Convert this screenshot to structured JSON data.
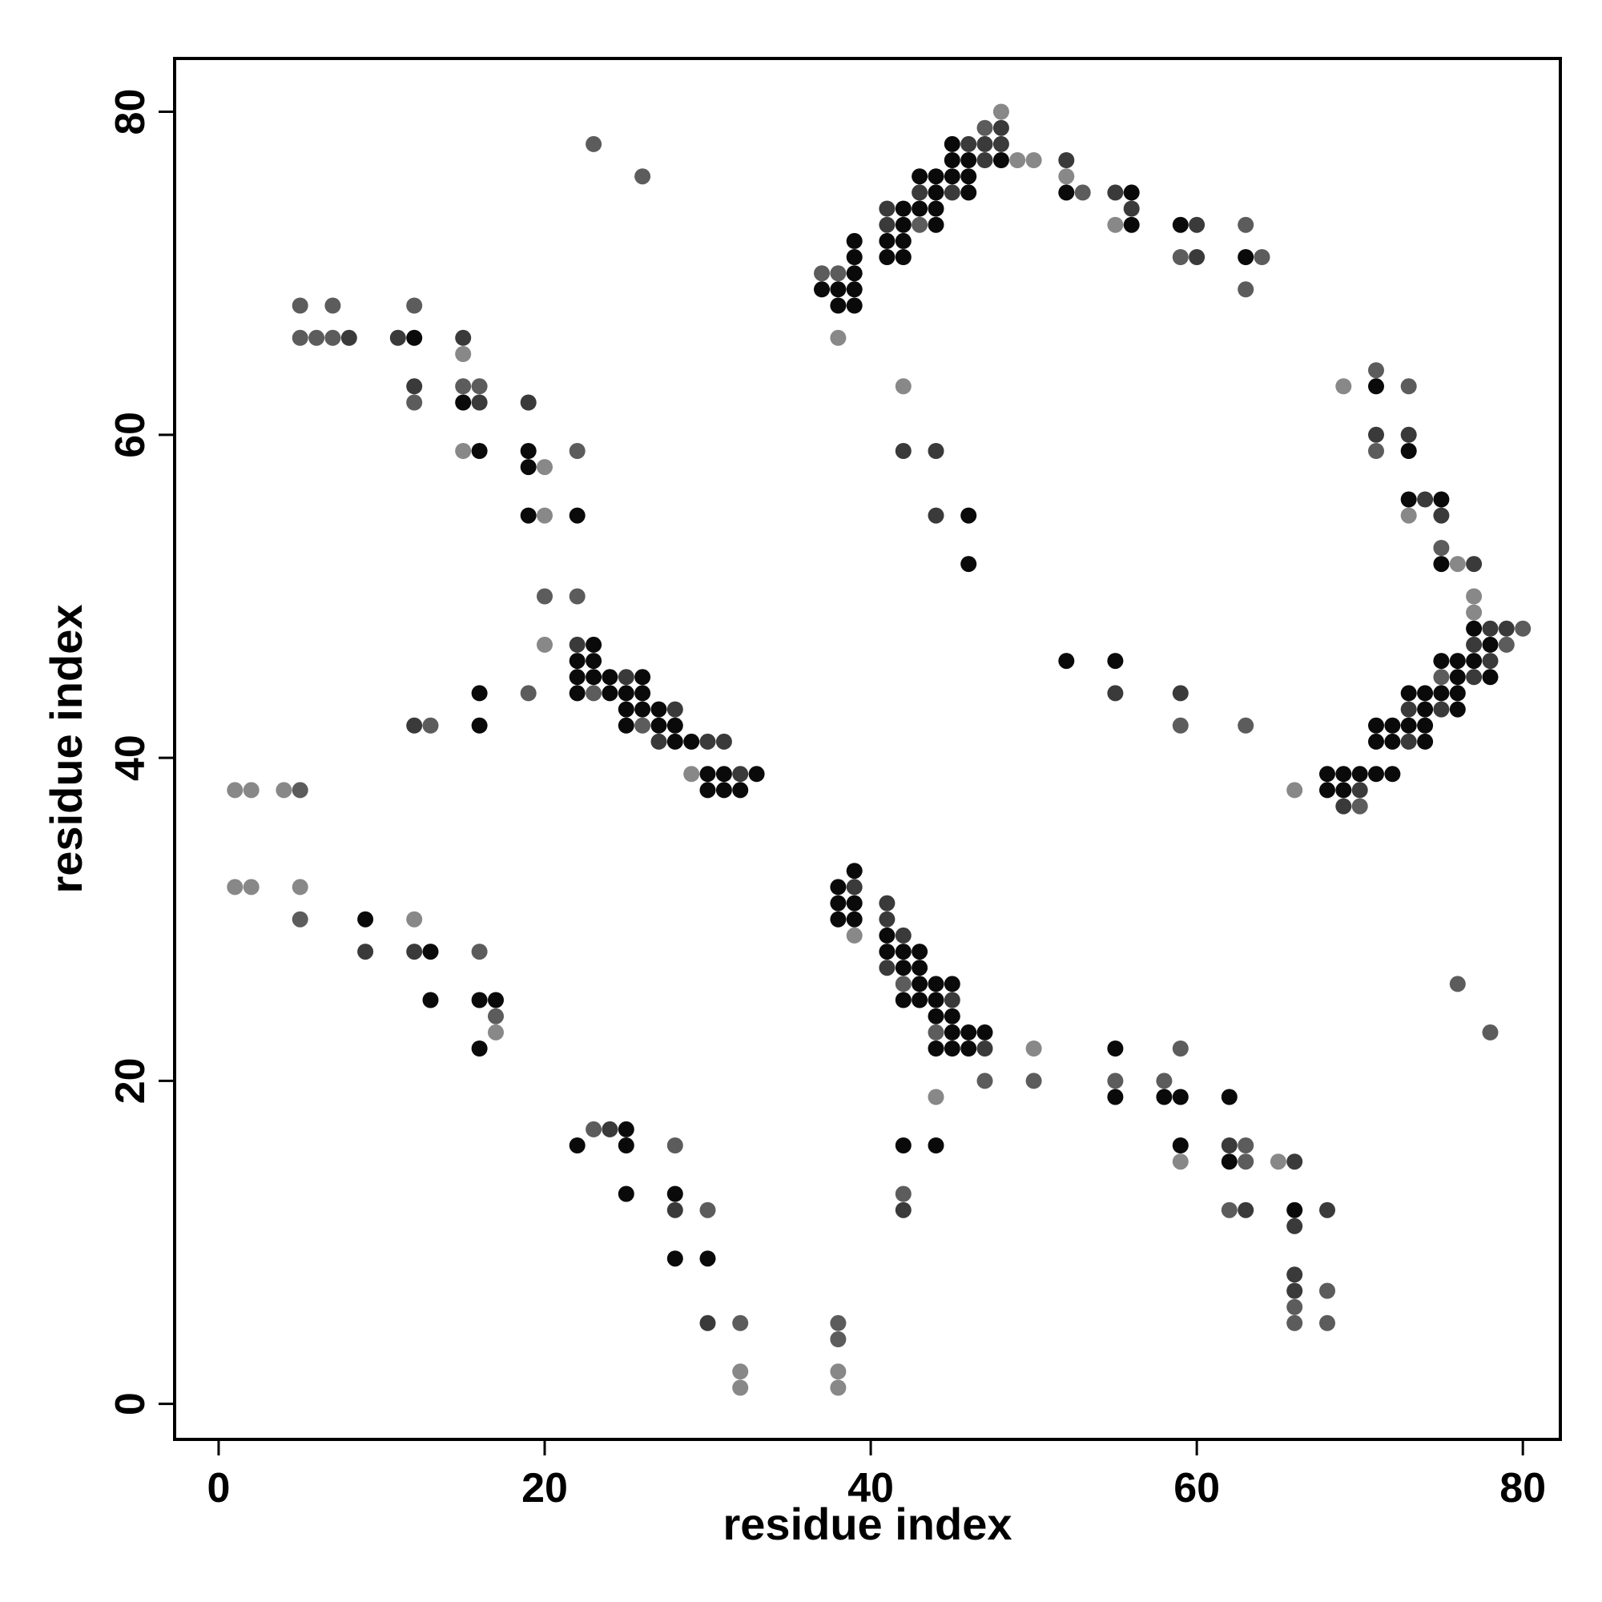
{
  "chart_data": {
    "type": "scatter",
    "title": "",
    "xlabel": "residue index",
    "ylabel": "residue index",
    "xlim": [
      -2.7,
      82.3
    ],
    "ylim": [
      -2.2,
      83.3
    ],
    "xticks": [
      0,
      20,
      40,
      60,
      80
    ],
    "yticks": [
      0,
      20,
      40,
      60,
      80
    ],
    "xtick_labels": [
      "0",
      "20",
      "40",
      "60",
      "80"
    ],
    "ytick_labels": [
      "0",
      "20",
      "40",
      "60",
      "80"
    ],
    "grid": false,
    "legend": "none",
    "shade_scale": "darker = stronger contact",
    "shade_colors": {
      "1": "#0a0a0a",
      "2": "#3a3a3a",
      "3": "#5c5c5c",
      "4": "#888888"
    },
    "points": [
      [
        23,
        78,
        3
      ],
      [
        26,
        76,
        3
      ],
      [
        48,
        80,
        4
      ],
      [
        47,
        79,
        3
      ],
      [
        48,
        79,
        2
      ],
      [
        45,
        78,
        1
      ],
      [
        46,
        78,
        2
      ],
      [
        47,
        78,
        2
      ],
      [
        48,
        78,
        2
      ],
      [
        45,
        77,
        1
      ],
      [
        46,
        77,
        1
      ],
      [
        47,
        77,
        2
      ],
      [
        48,
        77,
        1
      ],
      [
        49,
        77,
        4
      ],
      [
        50,
        77,
        4
      ],
      [
        52,
        77,
        2
      ],
      [
        43,
        76,
        1
      ],
      [
        44,
        76,
        1
      ],
      [
        45,
        76,
        1
      ],
      [
        46,
        76,
        1
      ],
      [
        52,
        76,
        4
      ],
      [
        43,
        75,
        2
      ],
      [
        44,
        75,
        1
      ],
      [
        45,
        75,
        2
      ],
      [
        46,
        75,
        1
      ],
      [
        52,
        75,
        1
      ],
      [
        53,
        75,
        3
      ],
      [
        55,
        75,
        2
      ],
      [
        56,
        75,
        1
      ],
      [
        41,
        74,
        2
      ],
      [
        42,
        74,
        1
      ],
      [
        43,
        74,
        1
      ],
      [
        44,
        74,
        1
      ],
      [
        56,
        74,
        2
      ],
      [
        41,
        73,
        2
      ],
      [
        42,
        73,
        1
      ],
      [
        43,
        73,
        3
      ],
      [
        44,
        73,
        1
      ],
      [
        55,
        73,
        4
      ],
      [
        56,
        73,
        1
      ],
      [
        59,
        73,
        1
      ],
      [
        60,
        73,
        2
      ],
      [
        63,
        73,
        3
      ],
      [
        41,
        72,
        1
      ],
      [
        42,
        72,
        1
      ],
      [
        39,
        72,
        1
      ],
      [
        39,
        71,
        1
      ],
      [
        41,
        71,
        1
      ],
      [
        42,
        71,
        1
      ],
      [
        59,
        71,
        3
      ],
      [
        60,
        71,
        2
      ],
      [
        63,
        71,
        1
      ],
      [
        64,
        71,
        3
      ],
      [
        37,
        70,
        3
      ],
      [
        38,
        70,
        3
      ],
      [
        39,
        70,
        1
      ],
      [
        37,
        69,
        1
      ],
      [
        38,
        69,
        1
      ],
      [
        39,
        69,
        1
      ],
      [
        63,
        69,
        3
      ],
      [
        5,
        68,
        3
      ],
      [
        7,
        68,
        3
      ],
      [
        12,
        68,
        3
      ],
      [
        38,
        68,
        1
      ],
      [
        39,
        68,
        1
      ],
      [
        5,
        66,
        3
      ],
      [
        6,
        66,
        3
      ],
      [
        7,
        66,
        3
      ],
      [
        8,
        66,
        2
      ],
      [
        11,
        66,
        2
      ],
      [
        12,
        66,
        1
      ],
      [
        15,
        66,
        2
      ],
      [
        38,
        66,
        4
      ],
      [
        15,
        65,
        4
      ],
      [
        71,
        64,
        3
      ],
      [
        12,
        63,
        2
      ],
      [
        15,
        63,
        3
      ],
      [
        16,
        63,
        3
      ],
      [
        42,
        63,
        4
      ],
      [
        69,
        63,
        4
      ],
      [
        71,
        63,
        1
      ],
      [
        73,
        63,
        3
      ],
      [
        12,
        62,
        3
      ],
      [
        15,
        62,
        1
      ],
      [
        16,
        62,
        2
      ],
      [
        19,
        62,
        2
      ],
      [
        71,
        60,
        2
      ],
      [
        73,
        60,
        2
      ],
      [
        15,
        59,
        4
      ],
      [
        16,
        59,
        1
      ],
      [
        19,
        59,
        1
      ],
      [
        22,
        59,
        3
      ],
      [
        42,
        59,
        2
      ],
      [
        44,
        59,
        2
      ],
      [
        71,
        59,
        3
      ],
      [
        73,
        59,
        1
      ],
      [
        19,
        58,
        1
      ],
      [
        20,
        58,
        4
      ],
      [
        73,
        56,
        1
      ],
      [
        74,
        56,
        2
      ],
      [
        75,
        56,
        1
      ],
      [
        19,
        55,
        1
      ],
      [
        20,
        55,
        4
      ],
      [
        22,
        55,
        1
      ],
      [
        44,
        55,
        2
      ],
      [
        46,
        55,
        1
      ],
      [
        73,
        55,
        4
      ],
      [
        75,
        55,
        2
      ],
      [
        75,
        53,
        3
      ],
      [
        46,
        52,
        1
      ],
      [
        75,
        52,
        1
      ],
      [
        76,
        52,
        4
      ],
      [
        77,
        52,
        2
      ],
      [
        20,
        50,
        3
      ],
      [
        22,
        50,
        3
      ],
      [
        77,
        50,
        4
      ],
      [
        77,
        49,
        4
      ],
      [
        77,
        48,
        1
      ],
      [
        78,
        48,
        2
      ],
      [
        79,
        48,
        2
      ],
      [
        80,
        48,
        3
      ],
      [
        20,
        47,
        4
      ],
      [
        22,
        47,
        2
      ],
      [
        23,
        47,
        1
      ],
      [
        77,
        47,
        2
      ],
      [
        78,
        47,
        1
      ],
      [
        79,
        47,
        3
      ],
      [
        22,
        46,
        1
      ],
      [
        23,
        46,
        1
      ],
      [
        52,
        46,
        1
      ],
      [
        55,
        46,
        1
      ],
      [
        75,
        46,
        1
      ],
      [
        76,
        46,
        1
      ],
      [
        77,
        46,
        1
      ],
      [
        78,
        46,
        2
      ],
      [
        22,
        45,
        1
      ],
      [
        23,
        45,
        1
      ],
      [
        24,
        45,
        1
      ],
      [
        25,
        45,
        2
      ],
      [
        26,
        45,
        1
      ],
      [
        75,
        45,
        3
      ],
      [
        76,
        45,
        1
      ],
      [
        77,
        45,
        2
      ],
      [
        78,
        45,
        1
      ],
      [
        16,
        44,
        1
      ],
      [
        19,
        44,
        3
      ],
      [
        22,
        44,
        1
      ],
      [
        23,
        44,
        3
      ],
      [
        24,
        44,
        1
      ],
      [
        25,
        44,
        1
      ],
      [
        26,
        44,
        1
      ],
      [
        55,
        44,
        2
      ],
      [
        59,
        44,
        2
      ],
      [
        73,
        44,
        1
      ],
      [
        74,
        44,
        1
      ],
      [
        75,
        44,
        1
      ],
      [
        76,
        44,
        1
      ],
      [
        25,
        43,
        1
      ],
      [
        26,
        43,
        1
      ],
      [
        27,
        43,
        1
      ],
      [
        28,
        43,
        2
      ],
      [
        73,
        43,
        2
      ],
      [
        74,
        43,
        1
      ],
      [
        75,
        43,
        2
      ],
      [
        76,
        43,
        1
      ],
      [
        12,
        42,
        2
      ],
      [
        13,
        42,
        3
      ],
      [
        16,
        42,
        1
      ],
      [
        25,
        42,
        1
      ],
      [
        26,
        42,
        3
      ],
      [
        27,
        42,
        1
      ],
      [
        28,
        42,
        1
      ],
      [
        59,
        42,
        3
      ],
      [
        63,
        42,
        3
      ],
      [
        71,
        42,
        1
      ],
      [
        72,
        42,
        1
      ],
      [
        73,
        42,
        1
      ],
      [
        74,
        42,
        1
      ],
      [
        27,
        41,
        2
      ],
      [
        28,
        41,
        1
      ],
      [
        29,
        41,
        1
      ],
      [
        30,
        41,
        2
      ],
      [
        31,
        41,
        2
      ],
      [
        71,
        41,
        1
      ],
      [
        72,
        41,
        1
      ],
      [
        73,
        41,
        2
      ],
      [
        74,
        41,
        1
      ],
      [
        29,
        39,
        4
      ],
      [
        30,
        39,
        1
      ],
      [
        31,
        39,
        1
      ],
      [
        32,
        39,
        2
      ],
      [
        33,
        39,
        1
      ],
      [
        68,
        39,
        1
      ],
      [
        69,
        39,
        1
      ],
      [
        70,
        39,
        1
      ],
      [
        71,
        39,
        1
      ],
      [
        72,
        39,
        1
      ],
      [
        1,
        38,
        4
      ],
      [
        2,
        38,
        4
      ],
      [
        4,
        38,
        4
      ],
      [
        5,
        38,
        3
      ],
      [
        30,
        38,
        1
      ],
      [
        31,
        38,
        1
      ],
      [
        32,
        38,
        1
      ],
      [
        66,
        38,
        4
      ],
      [
        68,
        38,
        1
      ],
      [
        69,
        38,
        1
      ],
      [
        70,
        38,
        2
      ],
      [
        69,
        37,
        2
      ],
      [
        70,
        37,
        3
      ],
      [
        39,
        33,
        1
      ],
      [
        1,
        32,
        4
      ],
      [
        2,
        32,
        4
      ],
      [
        5,
        32,
        4
      ],
      [
        38,
        32,
        1
      ],
      [
        39,
        32,
        2
      ],
      [
        38,
        31,
        1
      ],
      [
        39,
        31,
        1
      ],
      [
        41,
        31,
        2
      ],
      [
        5,
        30,
        3
      ],
      [
        9,
        30,
        1
      ],
      [
        12,
        30,
        4
      ],
      [
        38,
        30,
        1
      ],
      [
        39,
        30,
        1
      ],
      [
        41,
        30,
        2
      ],
      [
        39,
        29,
        4
      ],
      [
        41,
        29,
        1
      ],
      [
        42,
        29,
        2
      ],
      [
        9,
        28,
        2
      ],
      [
        12,
        28,
        2
      ],
      [
        13,
        28,
        1
      ],
      [
        16,
        28,
        3
      ],
      [
        41,
        28,
        1
      ],
      [
        42,
        28,
        1
      ],
      [
        43,
        28,
        1
      ],
      [
        41,
        27,
        2
      ],
      [
        42,
        27,
        1
      ],
      [
        43,
        27,
        1
      ],
      [
        42,
        26,
        3
      ],
      [
        43,
        26,
        1
      ],
      [
        44,
        26,
        1
      ],
      [
        45,
        26,
        1
      ],
      [
        76,
        26,
        3
      ],
      [
        13,
        25,
        1
      ],
      [
        16,
        25,
        1
      ],
      [
        17,
        25,
        1
      ],
      [
        42,
        25,
        1
      ],
      [
        43,
        25,
        1
      ],
      [
        44,
        25,
        1
      ],
      [
        45,
        25,
        2
      ],
      [
        17,
        24,
        3
      ],
      [
        44,
        24,
        1
      ],
      [
        45,
        24,
        1
      ],
      [
        17,
        23,
        4
      ],
      [
        44,
        23,
        3
      ],
      [
        45,
        23,
        1
      ],
      [
        46,
        23,
        1
      ],
      [
        47,
        23,
        1
      ],
      [
        78,
        23,
        3
      ],
      [
        16,
        22,
        1
      ],
      [
        44,
        22,
        1
      ],
      [
        45,
        22,
        1
      ],
      [
        46,
        22,
        1
      ],
      [
        47,
        22,
        2
      ],
      [
        50,
        22,
        4
      ],
      [
        55,
        22,
        1
      ],
      [
        59,
        22,
        3
      ],
      [
        47,
        20,
        3
      ],
      [
        50,
        20,
        3
      ],
      [
        55,
        20,
        3
      ],
      [
        58,
        20,
        3
      ],
      [
        44,
        19,
        4
      ],
      [
        55,
        19,
        1
      ],
      [
        58,
        19,
        1
      ],
      [
        59,
        19,
        1
      ],
      [
        62,
        19,
        1
      ],
      [
        23,
        17,
        3
      ],
      [
        24,
        17,
        2
      ],
      [
        25,
        17,
        1
      ],
      [
        22,
        16,
        1
      ],
      [
        25,
        16,
        1
      ],
      [
        28,
        16,
        3
      ],
      [
        42,
        16,
        1
      ],
      [
        44,
        16,
        1
      ],
      [
        59,
        16,
        1
      ],
      [
        62,
        16,
        2
      ],
      [
        63,
        16,
        3
      ],
      [
        59,
        15,
        4
      ],
      [
        62,
        15,
        1
      ],
      [
        63,
        15,
        3
      ],
      [
        65,
        15,
        4
      ],
      [
        66,
        15,
        2
      ],
      [
        25,
        13,
        1
      ],
      [
        28,
        13,
        1
      ],
      [
        42,
        13,
        3
      ],
      [
        28,
        12,
        2
      ],
      [
        30,
        12,
        3
      ],
      [
        42,
        12,
        2
      ],
      [
        62,
        12,
        3
      ],
      [
        63,
        12,
        2
      ],
      [
        66,
        12,
        1
      ],
      [
        68,
        12,
        2
      ],
      [
        66,
        11,
        2
      ],
      [
        28,
        9,
        1
      ],
      [
        30,
        9,
        1
      ],
      [
        66,
        8,
        2
      ],
      [
        66,
        7,
        2
      ],
      [
        68,
        7,
        3
      ],
      [
        66,
        6,
        3
      ],
      [
        30,
        5,
        2
      ],
      [
        32,
        5,
        3
      ],
      [
        38,
        5,
        3
      ],
      [
        66,
        5,
        3
      ],
      [
        68,
        5,
        3
      ],
      [
        38,
        4,
        3
      ],
      [
        32,
        2,
        4
      ],
      [
        38,
        2,
        4
      ],
      [
        32,
        1,
        4
      ],
      [
        38,
        1,
        4
      ]
    ]
  }
}
